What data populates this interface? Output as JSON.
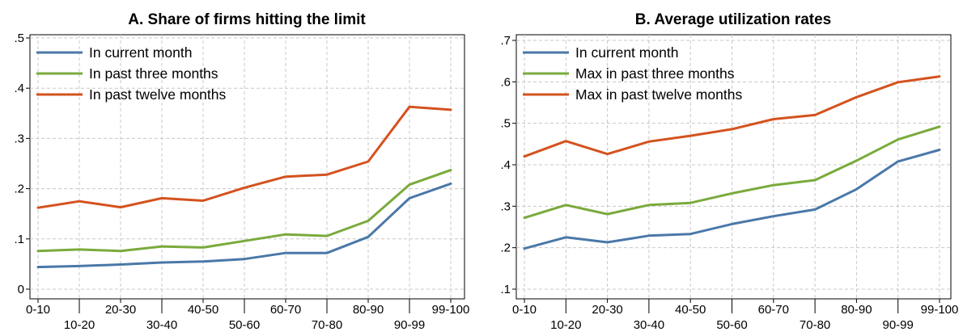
{
  "chart_data": [
    {
      "type": "line",
      "title": "A. Share of firms hitting the limit",
      "xlabel": "",
      "ylabel": "",
      "categories": [
        "0-10",
        "10-20",
        "20-30",
        "30-40",
        "40-50",
        "50-60",
        "60-70",
        "70-80",
        "80-90",
        "90-99",
        "99-100"
      ],
      "ylim": [
        0,
        0.5
      ],
      "yticks": [
        0,
        0.1,
        0.2,
        0.3,
        0.4,
        0.5
      ],
      "ytick_labels": [
        "0",
        ".1",
        ".2",
        ".3",
        ".4",
        ".5"
      ],
      "grid": true,
      "legend_position": "top-left",
      "series": [
        {
          "name": "In current month",
          "color": "#4a78a8",
          "values": [
            0.044,
            0.046,
            0.049,
            0.053,
            0.055,
            0.06,
            0.072,
            0.072,
            0.104,
            0.181,
            0.21
          ]
        },
        {
          "name": "In past three months",
          "color": "#7aaa3c",
          "values": [
            0.076,
            0.079,
            0.076,
            0.085,
            0.083,
            0.096,
            0.109,
            0.106,
            0.136,
            0.208,
            0.237
          ]
        },
        {
          "name": "In past twelve months",
          "color": "#d4521f",
          "values": [
            0.162,
            0.175,
            0.163,
            0.181,
            0.176,
            0.202,
            0.224,
            0.228,
            0.254,
            0.363,
            0.357
          ]
        }
      ]
    },
    {
      "type": "line",
      "title": "B. Average utilization rates",
      "xlabel": "",
      "ylabel": "",
      "categories": [
        "0-10",
        "10-20",
        "20-30",
        "30-40",
        "40-50",
        "50-60",
        "60-70",
        "70-80",
        "80-90",
        "90-99",
        "99-100"
      ],
      "ylim": [
        0.1,
        0.7
      ],
      "yticks": [
        0.1,
        0.2,
        0.3,
        0.4,
        0.5,
        0.6,
        0.7
      ],
      "ytick_labels": [
        ".1",
        ".2",
        ".3",
        ".4",
        ".5",
        ".6",
        ".7"
      ],
      "grid": true,
      "legend_position": "top-left",
      "series": [
        {
          "name": "In current month",
          "color": "#4a78a8",
          "values": [
            0.198,
            0.225,
            0.213,
            0.229,
            0.233,
            0.257,
            0.276,
            0.292,
            0.341,
            0.408,
            0.436
          ]
        },
        {
          "name": "Max in past three months",
          "color": "#7aaa3c",
          "values": [
            0.272,
            0.303,
            0.281,
            0.303,
            0.308,
            0.331,
            0.351,
            0.363,
            0.41,
            0.461,
            0.492
          ]
        },
        {
          "name": "Max in past twelve months",
          "color": "#d4521f",
          "values": [
            0.42,
            0.457,
            0.426,
            0.456,
            0.47,
            0.486,
            0.51,
            0.52,
            0.563,
            0.599,
            0.613
          ]
        }
      ]
    }
  ]
}
